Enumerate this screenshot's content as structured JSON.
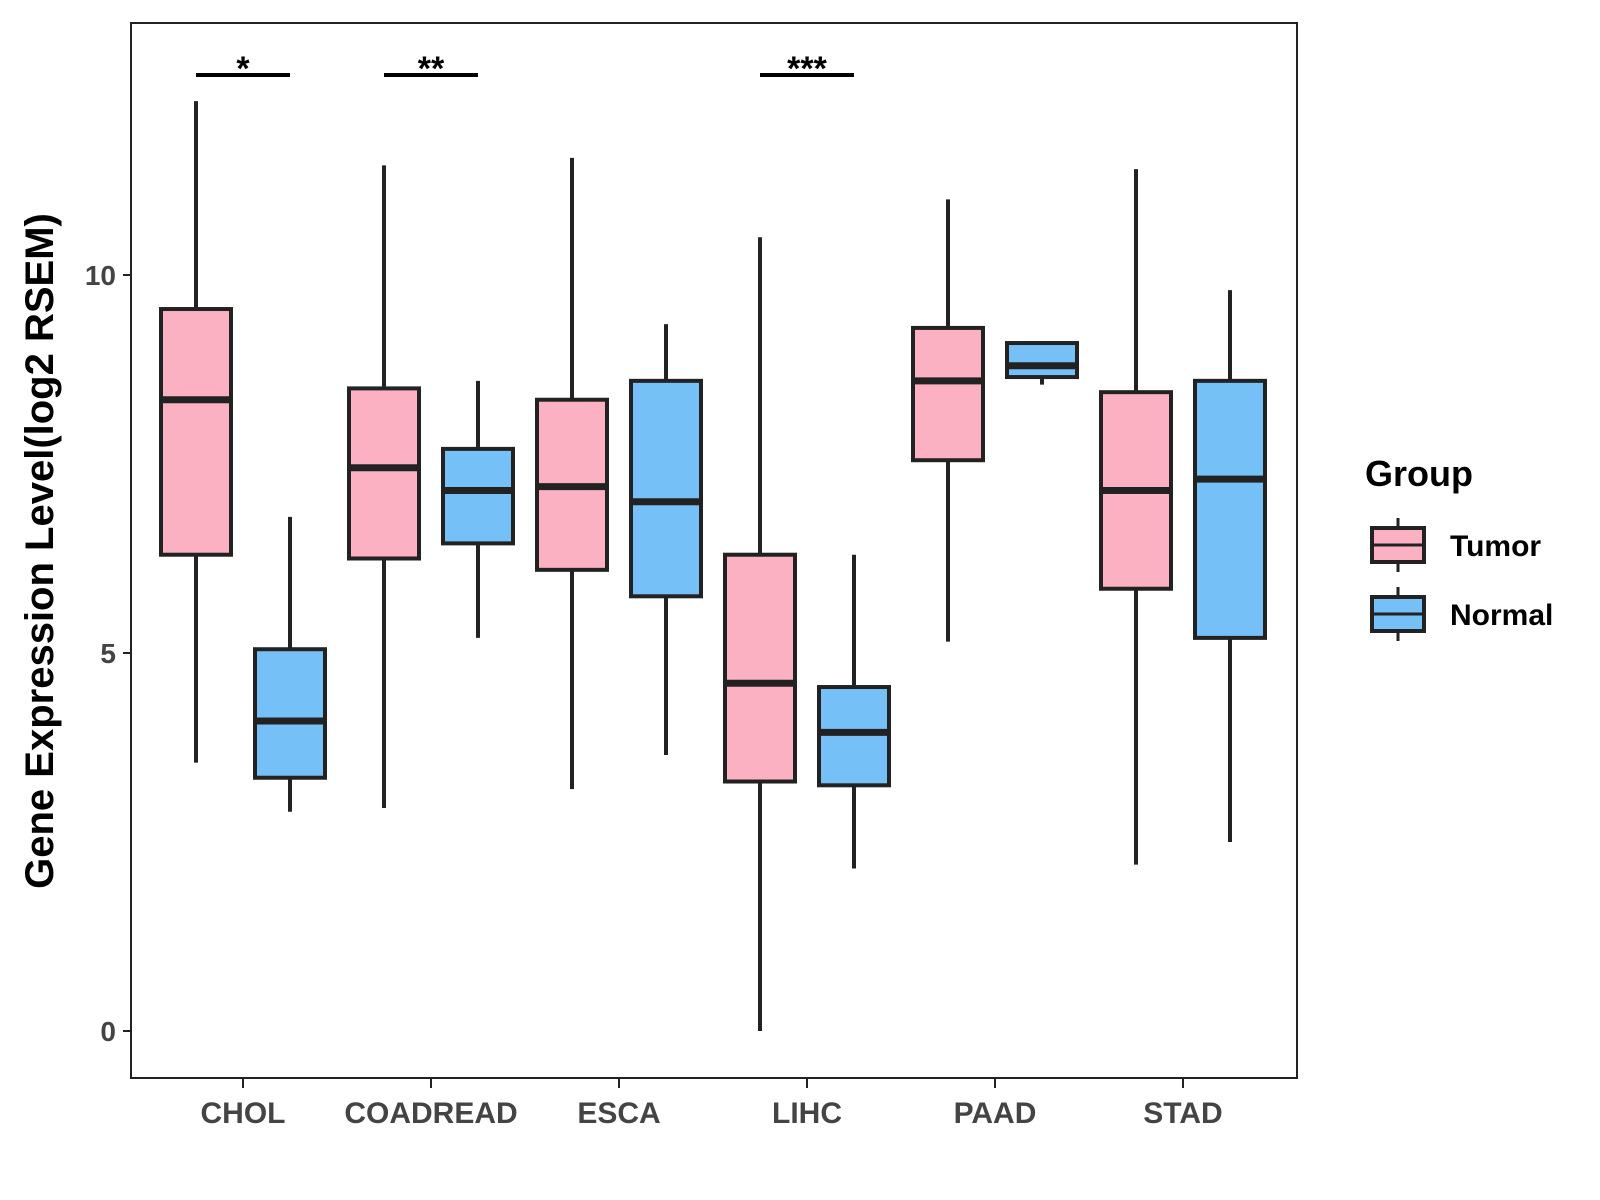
{
  "chart_data": {
    "type": "boxplot",
    "title": "",
    "xlabel": "",
    "ylabel": "Gene Expression Level(log2 RSEM)",
    "ylim": [
      -0.6,
      13.4
    ],
    "y_ticks": [
      0,
      5,
      10
    ],
    "y_tick_labels": [
      "0",
      "5",
      "10"
    ],
    "categories": [
      "CHOL",
      "COADREAD",
      "ESCA",
      "LIHC",
      "PAAD",
      "STAD"
    ],
    "legend": {
      "title": "Group",
      "position": "right",
      "entries": [
        "Tumor",
        "Normal"
      ]
    },
    "series": [
      {
        "name": "Tumor",
        "color": "#fbb1c2",
        "boxes": [
          {
            "category": "CHOL",
            "min": 3.55,
            "q1": 6.3,
            "median": 8.35,
            "q3": 9.55,
            "max": 12.3
          },
          {
            "category": "COADREAD",
            "min": 2.95,
            "q1": 6.25,
            "median": 7.45,
            "q3": 8.5,
            "max": 11.45
          },
          {
            "category": "ESCA",
            "min": 3.2,
            "q1": 6.1,
            "median": 7.2,
            "q3": 8.35,
            "max": 11.55
          },
          {
            "category": "LIHC",
            "min": 0.0,
            "q1": 3.3,
            "median": 4.6,
            "q3": 6.3,
            "max": 10.5
          },
          {
            "category": "PAAD",
            "min": 5.15,
            "q1": 7.55,
            "median": 8.6,
            "q3": 9.3,
            "max": 11.0
          },
          {
            "category": "STAD",
            "min": 2.2,
            "q1": 5.85,
            "median": 7.15,
            "q3": 8.45,
            "max": 11.4
          }
        ]
      },
      {
        "name": "Normal",
        "color": "#75c0f7",
        "boxes": [
          {
            "category": "CHOL",
            "min": 2.9,
            "q1": 3.35,
            "median": 4.1,
            "q3": 5.05,
            "max": 6.8
          },
          {
            "category": "COADREAD",
            "min": 5.2,
            "q1": 6.45,
            "median": 7.15,
            "q3": 7.7,
            "max": 8.6
          },
          {
            "category": "ESCA",
            "min": 3.65,
            "q1": 5.75,
            "median": 7.0,
            "q3": 8.6,
            "max": 9.35
          },
          {
            "category": "LIHC",
            "min": 2.15,
            "q1": 3.25,
            "median": 3.95,
            "q3": 4.55,
            "max": 6.3
          },
          {
            "category": "PAAD",
            "min": 8.55,
            "q1": 8.65,
            "median": 8.8,
            "q3": 9.1,
            "max": 9.1
          },
          {
            "category": "STAD",
            "min": 2.5,
            "q1": 5.2,
            "median": 7.3,
            "q3": 8.6,
            "max": 9.8
          }
        ]
      }
    ],
    "significance": [
      {
        "category": "CHOL",
        "label": "*"
      },
      {
        "category": "COADREAD",
        "label": "**"
      },
      {
        "category": "LIHC",
        "label": "***"
      }
    ],
    "grid": false
  }
}
